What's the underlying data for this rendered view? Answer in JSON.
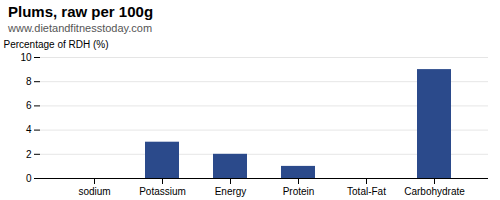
{
  "chart_data": {
    "type": "bar",
    "title": "Plums, raw per 100g",
    "subtitle": "www.dietandfitnesstoday.com",
    "categories": [
      "sodium",
      "Potassium",
      "Energy",
      "Protein",
      "Total-Fat",
      "Carbohydrate"
    ],
    "values": [
      0,
      3,
      2,
      1,
      0,
      9
    ],
    "color": "#2b4a8b",
    "ylabel": "Percentage of RDH (%)",
    "ylim": [
      0,
      10
    ],
    "yticks": [
      0,
      2,
      4,
      6,
      8,
      10
    ],
    "grid": true
  }
}
